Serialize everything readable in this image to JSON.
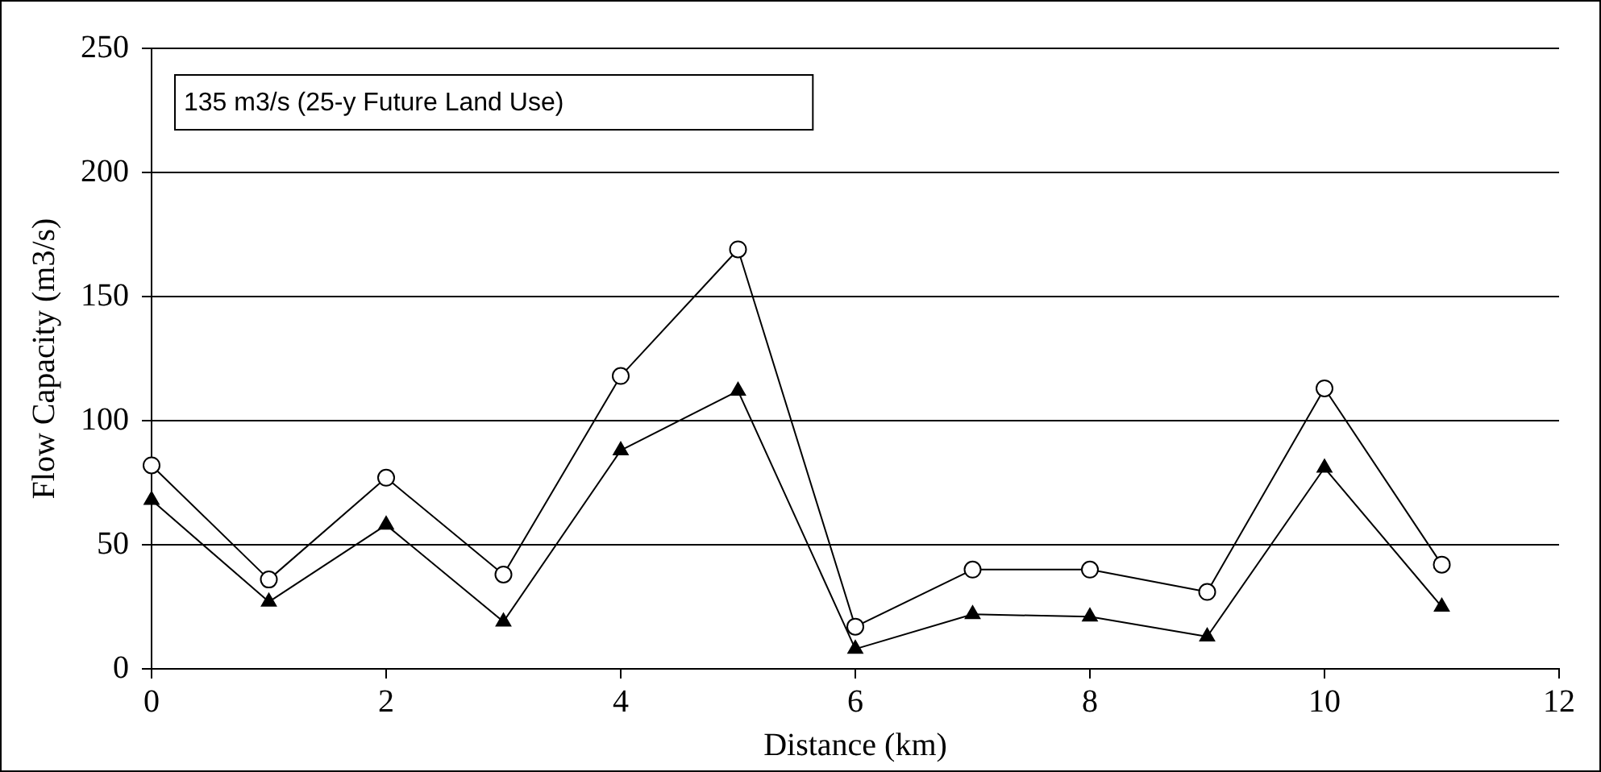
{
  "chart_data": {
    "type": "line",
    "xlabel": "Distance (km)",
    "ylabel": "Flow Capacity (m3/s)",
    "annotations": [
      "135 m3/s (25-y Future Land Use)"
    ],
    "x": [
      0,
      1,
      2,
      3,
      4,
      5,
      6,
      7,
      8,
      9,
      10,
      11
    ],
    "series": [
      {
        "color": "#000000",
        "marker": "circle",
        "values": [
          82,
          36,
          77,
          38,
          118,
          169,
          17,
          40,
          40,
          31,
          113,
          42
        ]
      },
      {
        "color": "#000000",
        "marker": "triangle",
        "values": [
          68,
          27,
          58,
          19,
          88,
          112,
          8,
          22,
          21,
          13,
          81,
          25
        ]
      }
    ],
    "xlim": [
      0,
      12
    ],
    "xticks": [
      0,
      2,
      4,
      6,
      8,
      10,
      12
    ],
    "ylim": [
      0,
      250
    ],
    "yticks": [
      0,
      50,
      100,
      150,
      200,
      250
    ],
    "grid": "y",
    "legend": false,
    "line_style": "solid"
  }
}
